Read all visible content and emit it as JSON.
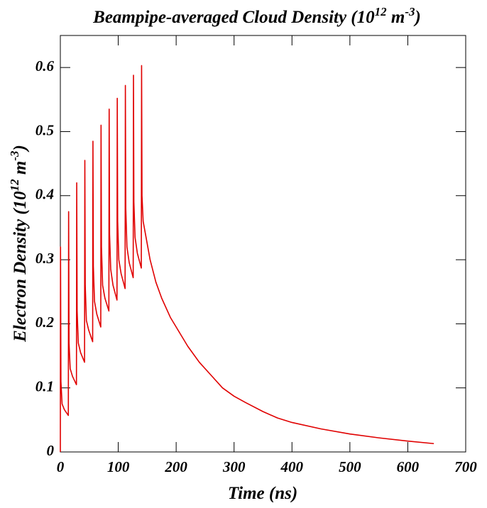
{
  "chart_data": {
    "type": "line",
    "title": [
      "Beampipe-averaged Cloud Density (10",
      "12",
      " m",
      "-3",
      ")"
    ],
    "x_label": "Time (ns)",
    "y_label": [
      "Electron Density (10",
      "12",
      " m",
      "-3",
      ")"
    ],
    "color": "#e00000",
    "x": [
      0,
      0.3,
      1,
      3,
      7,
      13.8,
      14.3,
      15,
      17,
      21,
      27.8,
      28.3,
      29,
      31,
      35,
      41.8,
      42.3,
      43,
      45,
      49,
      55.8,
      56.3,
      57,
      59,
      63,
      69.8,
      70.3,
      71,
      73,
      77,
      83.8,
      84.3,
      85,
      87,
      91,
      97.8,
      98.3,
      99,
      101,
      105,
      111.8,
      112.3,
      113,
      115,
      119,
      125.8,
      126.3,
      127,
      129,
      133,
      139.8,
      140.3,
      141,
      143,
      147,
      155,
      165,
      175,
      190,
      200,
      220,
      240,
      260,
      280,
      300,
      320,
      350,
      375,
      400,
      450,
      500,
      550,
      600,
      645
    ],
    "values": [
      0,
      0.32,
      0.11,
      0.075,
      0.066,
      0.057,
      0.375,
      0.17,
      0.13,
      0.118,
      0.105,
      0.42,
      0.22,
      0.17,
      0.155,
      0.14,
      0.455,
      0.26,
      0.205,
      0.19,
      0.172,
      0.485,
      0.29,
      0.235,
      0.215,
      0.195,
      0.51,
      0.32,
      0.26,
      0.24,
      0.22,
      0.535,
      0.34,
      0.285,
      0.26,
      0.237,
      0.552,
      0.36,
      0.3,
      0.278,
      0.255,
      0.572,
      0.38,
      0.32,
      0.295,
      0.272,
      0.588,
      0.39,
      0.335,
      0.31,
      0.287,
      0.603,
      0.4,
      0.36,
      0.34,
      0.3,
      0.265,
      0.24,
      0.21,
      0.195,
      0.165,
      0.14,
      0.12,
      0.1,
      0.087,
      0.077,
      0.063,
      0.053,
      0.046,
      0.036,
      0.028,
      0.022,
      0.017,
      0.013
    ],
    "xlim": [
      0,
      700
    ],
    "xticks": [
      0,
      100,
      200,
      300,
      400,
      500,
      600,
      700
    ],
    "ylim": [
      0,
      0.65
    ],
    "yticks": [
      0,
      0.1,
      0.2,
      0.3,
      0.4,
      0.5,
      0.6
    ]
  }
}
